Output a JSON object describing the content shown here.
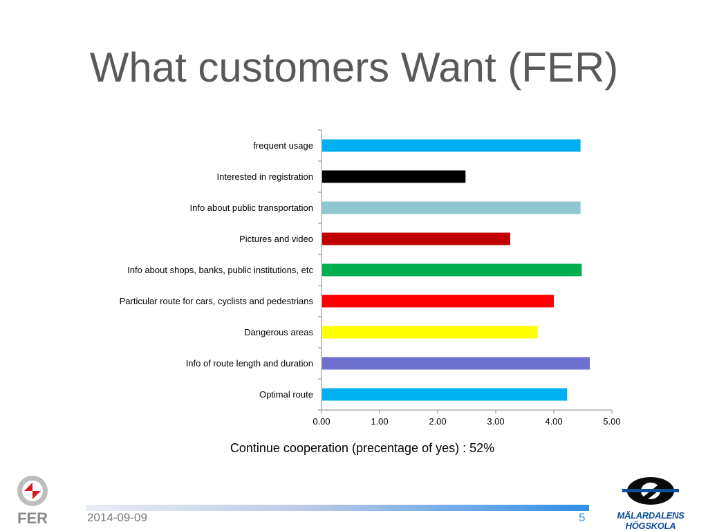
{
  "slide": {
    "title": "What customers Want (FER)",
    "caption": "Continue cooperation (precentage of yes) : 52%",
    "date": "2014-09-09",
    "page_number": "5",
    "logo_left_text": "FER",
    "logo_right_text": "MÄLARDALENS HÖGSKOLA"
  },
  "chart_data": {
    "type": "bar",
    "orientation": "horizontal",
    "title": "",
    "xlabel": "",
    "ylabel": "",
    "xlim": [
      0,
      5
    ],
    "x_ticks": [
      "0.00",
      "1.00",
      "2.00",
      "3.00",
      "4.00",
      "5.00"
    ],
    "grid": false,
    "categories": [
      "frequent usage",
      "Interested in registration",
      "Info about public transportation",
      "Pictures and video",
      "Info about shops, banks, public institutions, etc",
      "Particular route for cars, cyclists and pedestrians",
      "Dangerous areas",
      "Info of route length and duration",
      "Optimal route"
    ],
    "values": [
      4.46,
      2.48,
      4.46,
      3.25,
      4.48,
      4.0,
      3.72,
      4.62,
      4.23
    ],
    "colors": [
      "#00b0f0",
      "#000000",
      "#8ec7d0",
      "#c00000",
      "#00b050",
      "#ff0000",
      "#ffff00",
      "#6f6fd0",
      "#00b0f0"
    ]
  }
}
